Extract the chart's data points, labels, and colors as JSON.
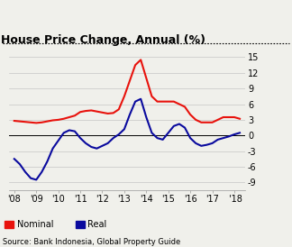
{
  "title": "House Price Change, Annual (%)",
  "source": "Source: Bank Indonesia, Global Property Guide",
  "nominal_x": [
    2008.0,
    2008.25,
    2008.5,
    2008.75,
    2009.0,
    2009.25,
    2009.5,
    2009.75,
    2010.0,
    2010.25,
    2010.5,
    2010.75,
    2011.0,
    2011.25,
    2011.5,
    2011.75,
    2012.0,
    2012.25,
    2012.5,
    2012.75,
    2013.0,
    2013.25,
    2013.5,
    2013.75,
    2014.0,
    2014.25,
    2014.5,
    2014.75,
    2015.0,
    2015.25,
    2015.5,
    2015.75,
    2016.0,
    2016.25,
    2016.5,
    2016.75,
    2017.0,
    2017.25,
    2017.5,
    2017.75,
    2018.0,
    2018.25
  ],
  "nominal_y": [
    2.8,
    2.7,
    2.6,
    2.5,
    2.4,
    2.5,
    2.7,
    2.9,
    3.0,
    3.2,
    3.5,
    3.8,
    4.5,
    4.7,
    4.8,
    4.6,
    4.4,
    4.2,
    4.3,
    5.0,
    7.5,
    10.5,
    13.5,
    14.5,
    11.0,
    7.5,
    6.5,
    6.5,
    6.5,
    6.5,
    6.0,
    5.5,
    4.0,
    3.0,
    2.5,
    2.5,
    2.5,
    3.0,
    3.5,
    3.5,
    3.5,
    3.2
  ],
  "real_x": [
    2008.0,
    2008.25,
    2008.5,
    2008.75,
    2009.0,
    2009.25,
    2009.5,
    2009.75,
    2010.0,
    2010.25,
    2010.5,
    2010.75,
    2011.0,
    2011.25,
    2011.5,
    2011.75,
    2012.0,
    2012.25,
    2012.5,
    2012.75,
    2013.0,
    2013.25,
    2013.5,
    2013.75,
    2014.0,
    2014.25,
    2014.5,
    2014.75,
    2015.0,
    2015.25,
    2015.5,
    2015.75,
    2016.0,
    2016.25,
    2016.5,
    2016.75,
    2017.0,
    2017.25,
    2017.5,
    2017.75,
    2018.0,
    2018.25
  ],
  "real_y": [
    -4.5,
    -5.5,
    -7.0,
    -8.2,
    -8.5,
    -7.0,
    -5.0,
    -2.5,
    -1.0,
    0.5,
    1.0,
    0.8,
    -0.5,
    -1.5,
    -2.2,
    -2.5,
    -2.0,
    -1.5,
    -0.5,
    0.2,
    1.2,
    4.0,
    6.5,
    7.0,
    3.5,
    0.5,
    -0.5,
    -0.8,
    0.5,
    1.8,
    2.2,
    1.5,
    -0.5,
    -1.5,
    -2.0,
    -1.8,
    -1.5,
    -0.8,
    -0.5,
    -0.2,
    0.2,
    0.5
  ],
  "nominal_color": "#e8120c",
  "real_color": "#0a0a9e",
  "yticks": [
    -9,
    -6,
    -3,
    0,
    3,
    6,
    9,
    12,
    15
  ],
  "xticks": [
    2008,
    2009,
    2010,
    2011,
    2012,
    2013,
    2014,
    2015,
    2016,
    2017,
    2018
  ],
  "xlabels": [
    "'08",
    "'09",
    "'10",
    "'11",
    "'12",
    "'13",
    "'14",
    "'15",
    "'16",
    "'17",
    " '18"
  ],
  "ylim": [
    -10.5,
    16.5
  ],
  "xlim": [
    2007.75,
    2018.5
  ],
  "background_color": "#f0f0eb",
  "title_fontsize": 9,
  "source_fontsize": 6,
  "legend_fontsize": 7,
  "tick_fontsize": 7,
  "line_width": 1.5
}
